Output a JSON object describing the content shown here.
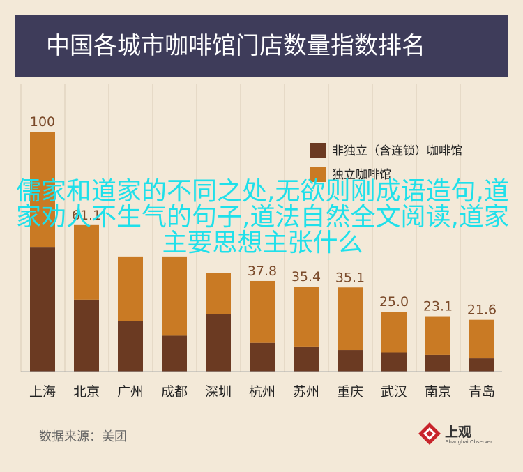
{
  "header": {
    "title": "中国各城市咖啡馆门店数量指数排名"
  },
  "chart_data": {
    "type": "bar",
    "stacked": true,
    "categories": [
      "上海",
      "北京",
      "广州",
      "成都",
      "深圳",
      "杭州",
      "苏州",
      "重庆",
      "武汉",
      "南京",
      "青岛"
    ],
    "series": [
      {
        "name": "非独立（含连锁）咖啡馆",
        "color": "#6b3a22",
        "values": [
          52,
          30,
          21,
          15,
          24,
          12,
          10.5,
          9,
          8,
          7,
          5.5
        ]
      },
      {
        "name": "独立咖啡馆",
        "color": "#c97a24",
        "values": [
          48,
          31.1,
          27,
          33,
          17,
          25.8,
          24.9,
          26.1,
          17,
          16.1,
          16.1
        ]
      }
    ],
    "totals": [
      "100",
      "61.1",
      "",
      "",
      "",
      "37.8",
      "35.4",
      "35.1",
      "25.0",
      "23.1",
      "21.6"
    ],
    "ylim": [
      0,
      100
    ],
    "legend": "top-right",
    "grid": true
  },
  "footer": {
    "source": "数据来源：美团"
  },
  "logo": {
    "name": "上观",
    "sub": "Shanghai Observer",
    "color": "#c8242b"
  },
  "overlay": {
    "text": "儒家和道家的不同之处,无欲则刚成语造句,道家劝人不生气的句子,道法自然全文阅读,道家主要思想主张什么"
  },
  "colors": {
    "background": "#f3e9d8",
    "header": "#3e3c5a",
    "grid": "#d9cbb6"
  }
}
